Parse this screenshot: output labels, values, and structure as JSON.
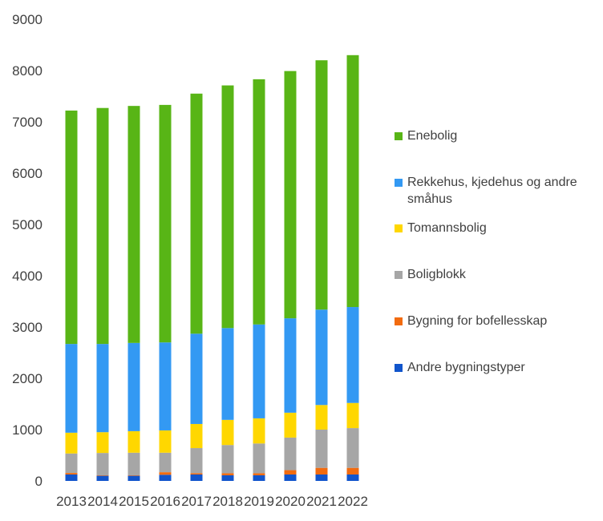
{
  "chart_data": {
    "type": "bar",
    "stacked": true,
    "title": "",
    "xlabel": "",
    "ylabel": "",
    "ylim": [
      0,
      9000
    ],
    "yticks": [
      0,
      1000,
      2000,
      3000,
      4000,
      5000,
      6000,
      7000,
      8000,
      9000
    ],
    "grid": false,
    "legend_position": "right",
    "categories": [
      "2013",
      "2014",
      "2015",
      "2016",
      "2017",
      "2018",
      "2019",
      "2020",
      "2021",
      "2022"
    ],
    "series": [
      {
        "name": "Andre bygningstyper",
        "color": "#1155CC",
        "values": [
          125,
          100,
          100,
          120,
          125,
          110,
          110,
          125,
          125,
          125
        ]
      },
      {
        "name": "Bygning for bofellesskap",
        "color": "#F26B0F",
        "values": [
          30,
          10,
          10,
          50,
          25,
          40,
          40,
          85,
          130,
          130
        ]
      },
      {
        "name": "Boligblokk",
        "color": "#A6A6A6",
        "values": [
          380,
          435,
          440,
          380,
          490,
          550,
          580,
          635,
          745,
          775
        ]
      },
      {
        "name": "Tomannsbolig",
        "color": "#FFD700",
        "values": [
          405,
          405,
          420,
          435,
          470,
          490,
          490,
          485,
          480,
          490
        ]
      },
      {
        "name": "Rekkehus, kjedehus og andre småhus",
        "color": "#3399F3",
        "values": [
          1730,
          1720,
          1720,
          1715,
          1760,
          1790,
          1830,
          1840,
          1860,
          1870
        ]
      },
      {
        "name": "Enebolig",
        "color": "#58B516",
        "values": [
          4550,
          4600,
          4620,
          4630,
          4680,
          4730,
          4780,
          4820,
          4860,
          4910
        ]
      }
    ]
  },
  "legend": {
    "items": [
      {
        "label": "Enebolig",
        "color": "#58B516"
      },
      {
        "label": "Rekkehus, kjedehus og andre småhus",
        "color": "#3399F3"
      },
      {
        "label": "Tomannsbolig",
        "color": "#FFD700"
      },
      {
        "label": "Boligblokk",
        "color": "#A6A6A6"
      },
      {
        "label": "Bygning for bofellesskap",
        "color": "#F26B0F"
      },
      {
        "label": "Andre bygningstyper",
        "color": "#1155CC"
      }
    ]
  }
}
